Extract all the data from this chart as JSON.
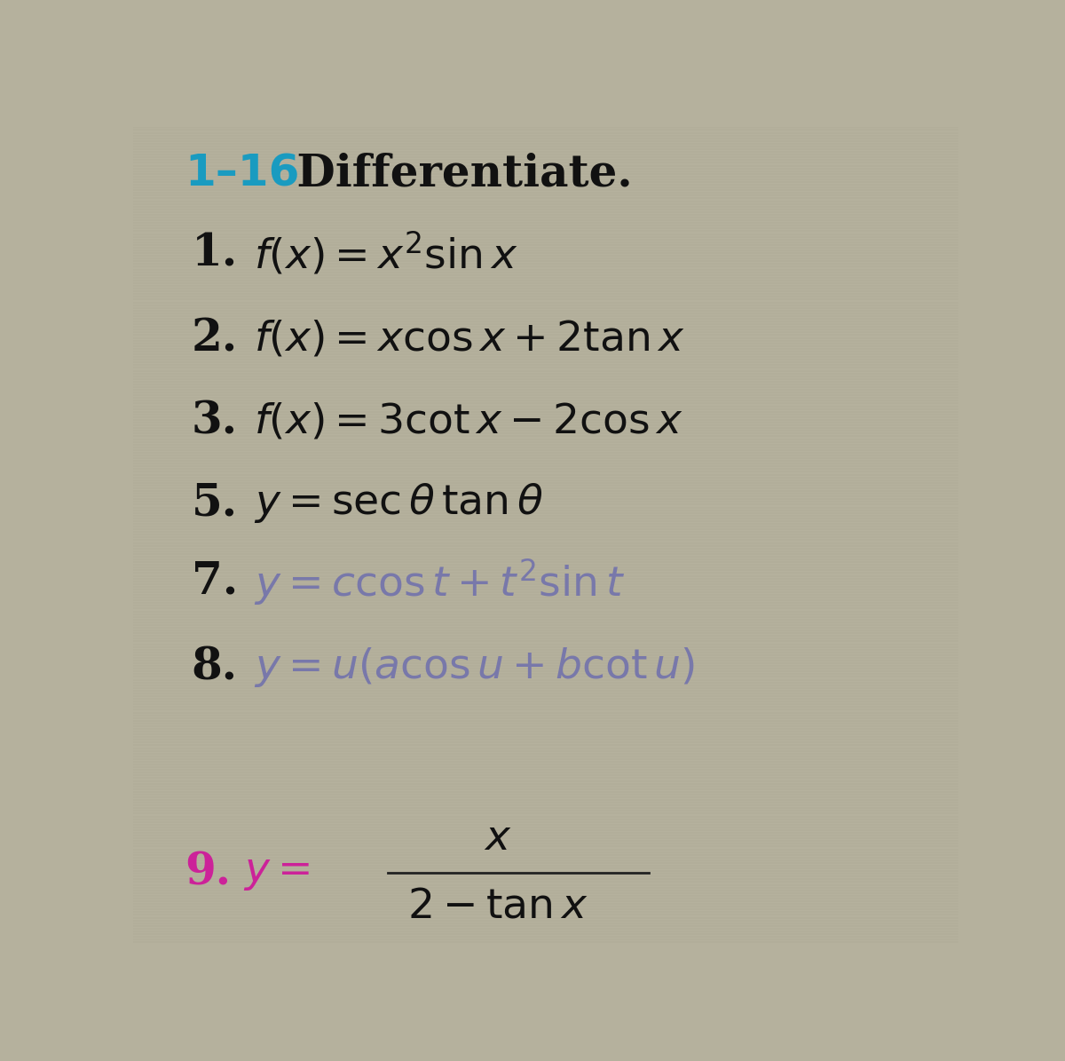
{
  "background_color": "#b5b19d",
  "title_number": "1–16",
  "title_number_color": "#1a9bc0",
  "title_text": " Differentiate.",
  "title_color": "#111111",
  "title_fontsize": 36,
  "items": [
    {
      "number": "1.",
      "latex": "$f(x) = x^{2}\\sin x$",
      "color": "#111111",
      "number_color": "#111111"
    },
    {
      "number": "2.",
      "latex": "$f(x) = x\\cos x + 2\\tan x$",
      "color": "#111111",
      "number_color": "#111111"
    },
    {
      "number": "3.",
      "latex": "$f(x) = 3\\cot x - 2\\cos x$",
      "color": "#111111",
      "number_color": "#111111"
    },
    {
      "number": "5.",
      "latex": "$y = \\sec\\theta\\,\\tan\\theta$",
      "color": "#111111",
      "number_color": "#111111"
    },
    {
      "number": "7.",
      "latex": "$y = c\\cos t + t^{2}\\sin t$",
      "color": "#7878aa",
      "number_color": "#111111"
    },
    {
      "number": "8.",
      "latex": "$y = u(a\\cos u + b\\cot u)$",
      "color": "#7878aa",
      "number_color": "#111111"
    }
  ],
  "item9": {
    "number": "9.",
    "number_color": "#cc2299",
    "y_eq": "$y =$",
    "y_color": "#cc2299",
    "numerator": "$x$",
    "denominator": "$2 - \\tan x$",
    "frac_color": "#111111"
  },
  "number_fontsize": 36,
  "formula_fontsize": 34
}
